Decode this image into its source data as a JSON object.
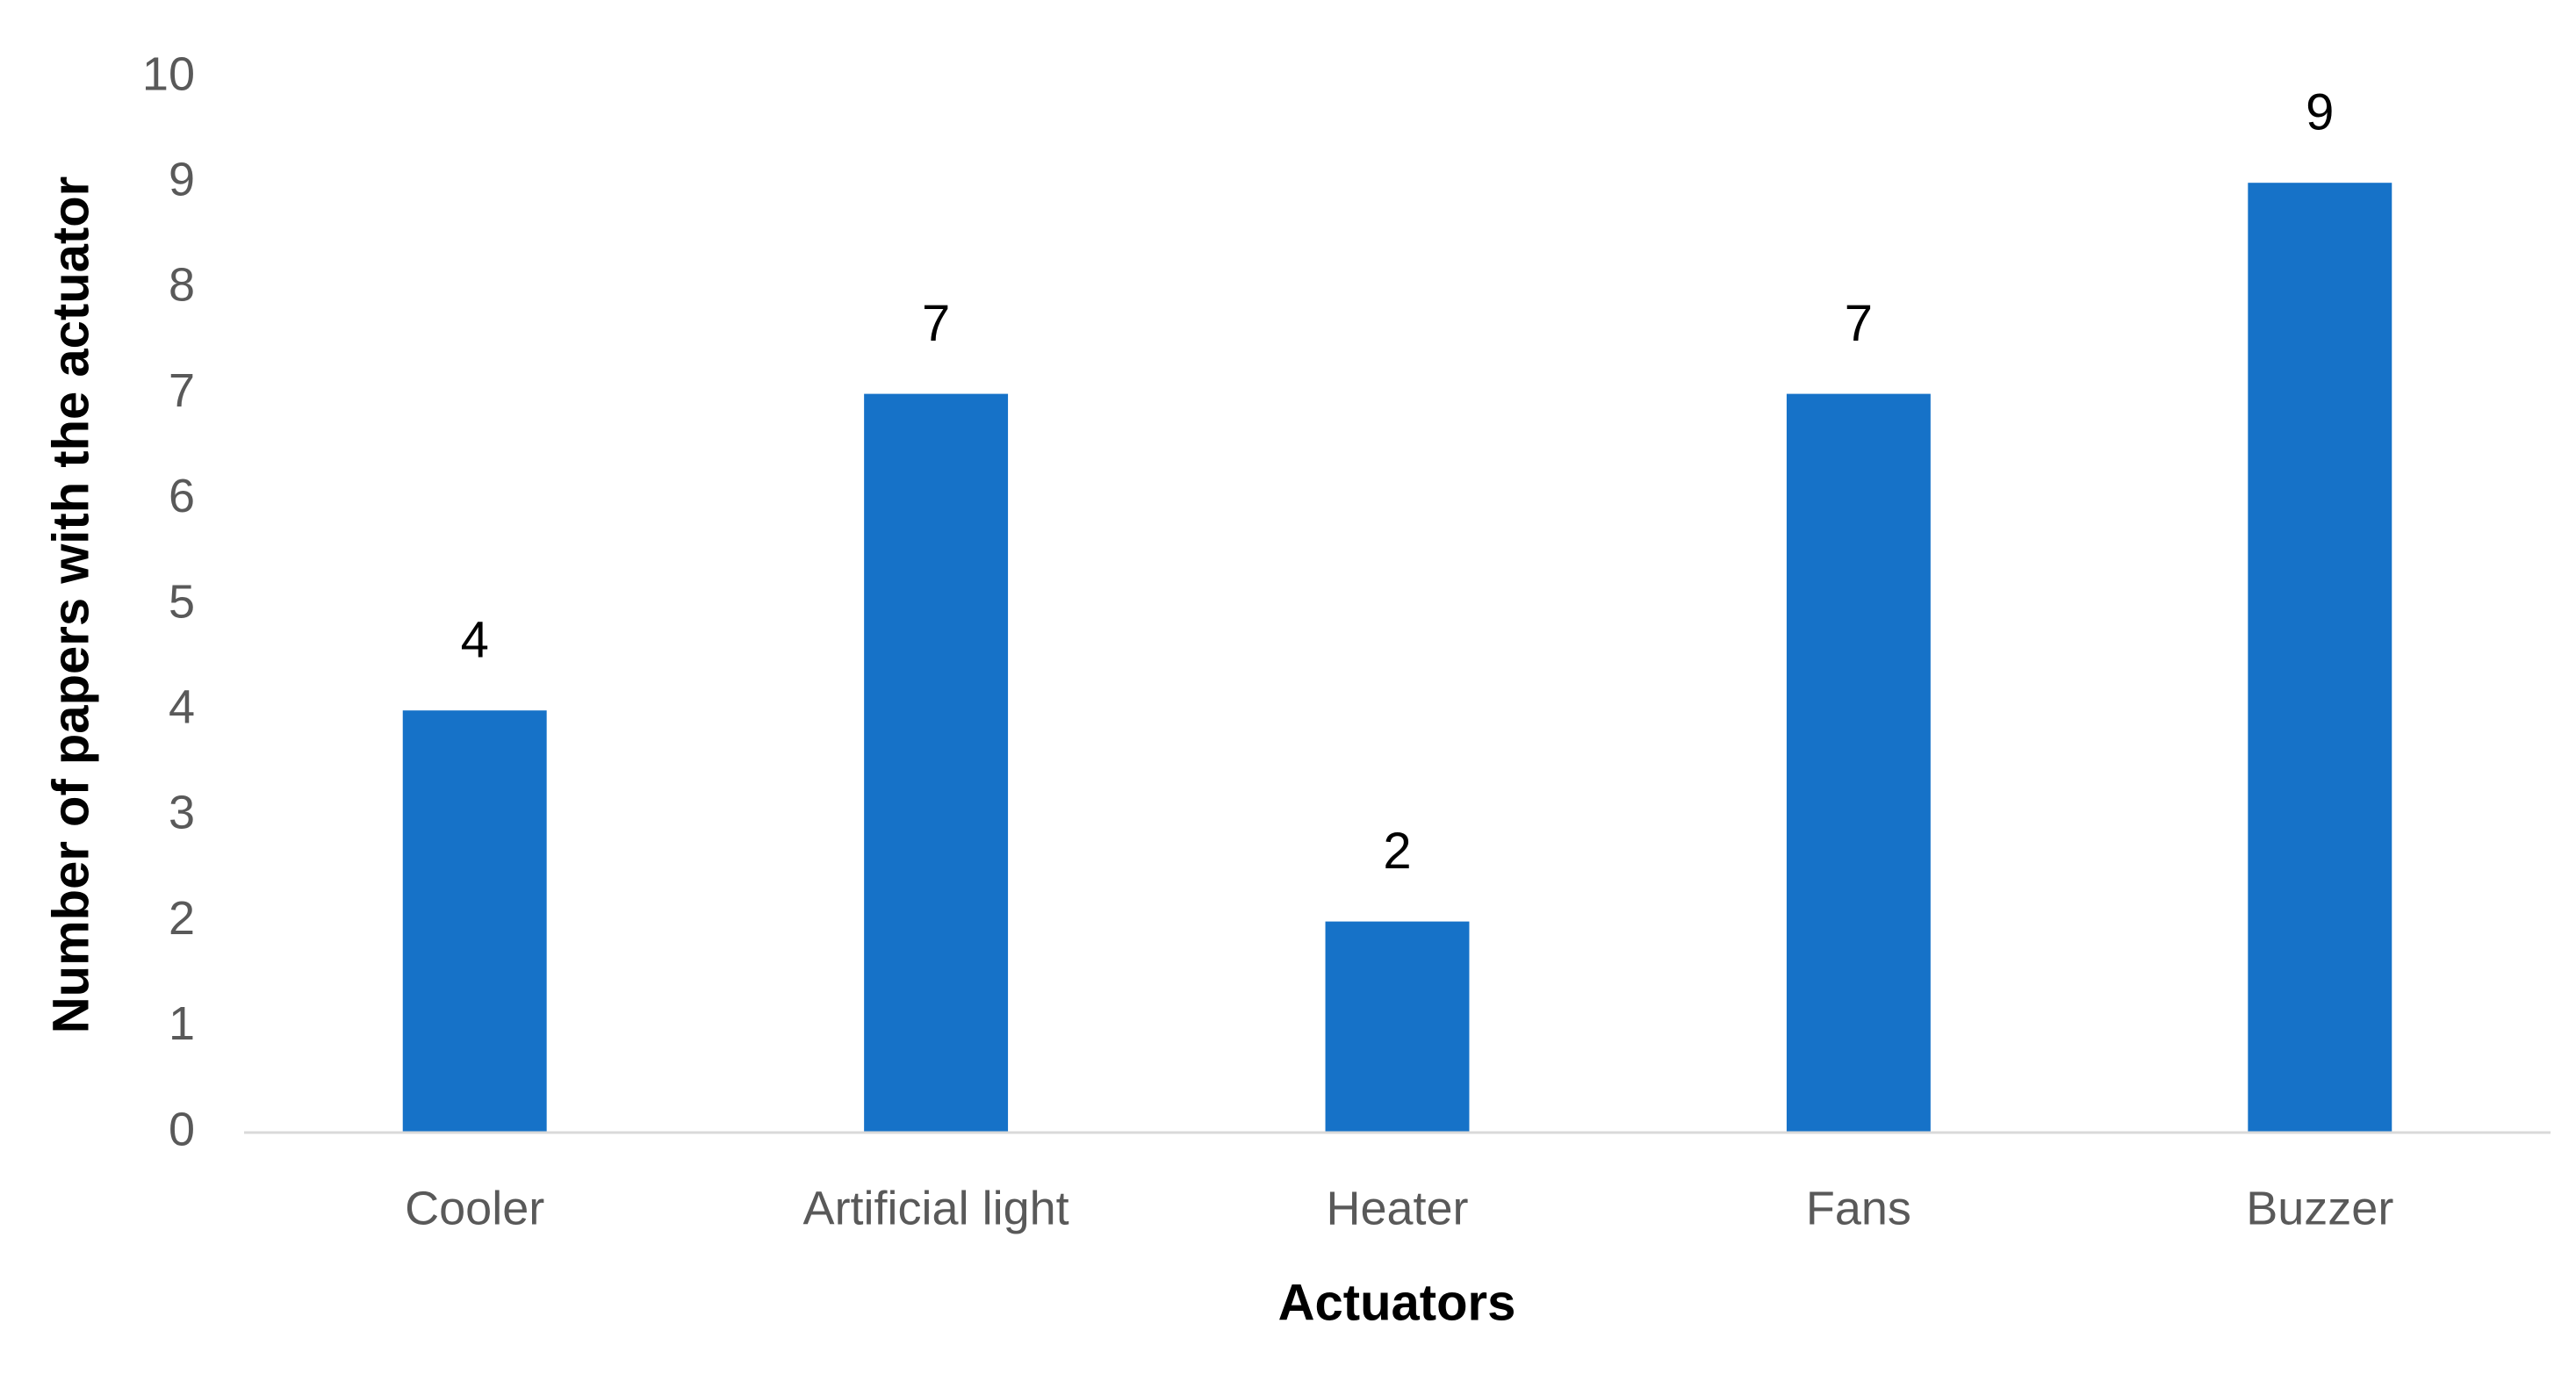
{
  "chart_data": {
    "type": "bar",
    "x_label": "Actuators",
    "y_label": "Number of papers with the actuator",
    "categories": [
      "Cooler",
      "Artificial light",
      "Heater",
      "Fans",
      "Buzzer"
    ],
    "values": [
      4,
      7,
      2,
      7,
      9
    ],
    "color": "#1672c8",
    "ylim": [
      0,
      10
    ],
    "yticks": [
      0,
      1,
      2,
      3,
      4,
      5,
      6,
      7,
      8,
      9,
      10
    ],
    "grid": false,
    "data_labels": true
  }
}
